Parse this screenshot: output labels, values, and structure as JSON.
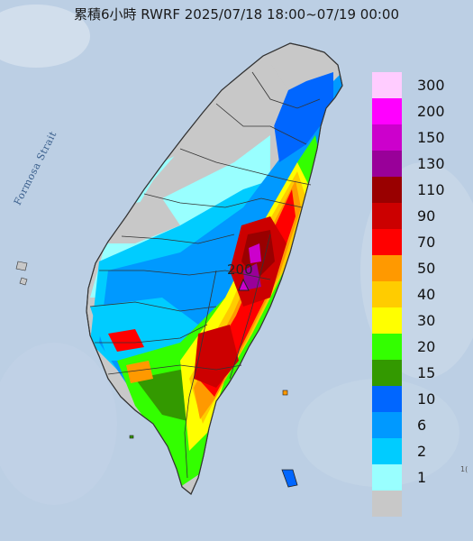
{
  "title": "累積6小時 RWRF 2025/07/18 18:00~07/19 00:00",
  "strait_label": "Formosa Strait",
  "max_value_label": "200",
  "corner_text": "1(",
  "legend": [
    {
      "label": "300",
      "color": "#ffccff"
    },
    {
      "label": "200",
      "color": "#ff00ff"
    },
    {
      "label": "150",
      "color": "#cc00cc"
    },
    {
      "label": "130",
      "color": "#990099"
    },
    {
      "label": "110",
      "color": "#990000"
    },
    {
      "label": "90",
      "color": "#cc0000"
    },
    {
      "label": "70",
      "color": "#ff0000"
    },
    {
      "label": "50",
      "color": "#ff9900"
    },
    {
      "label": "40",
      "color": "#ffcc00"
    },
    {
      "label": "30",
      "color": "#ffff00"
    },
    {
      "label": "20",
      "color": "#33ff00"
    },
    {
      "label": "15",
      "color": "#339900"
    },
    {
      "label": "10",
      "color": "#0066ff"
    },
    {
      "label": "6",
      "color": "#0099ff"
    },
    {
      "label": "2",
      "color": "#00ccff"
    },
    {
      "label": "1",
      "color": "#99ffff"
    },
    {
      "label": "",
      "color": "#c8c8c8"
    }
  ]
}
